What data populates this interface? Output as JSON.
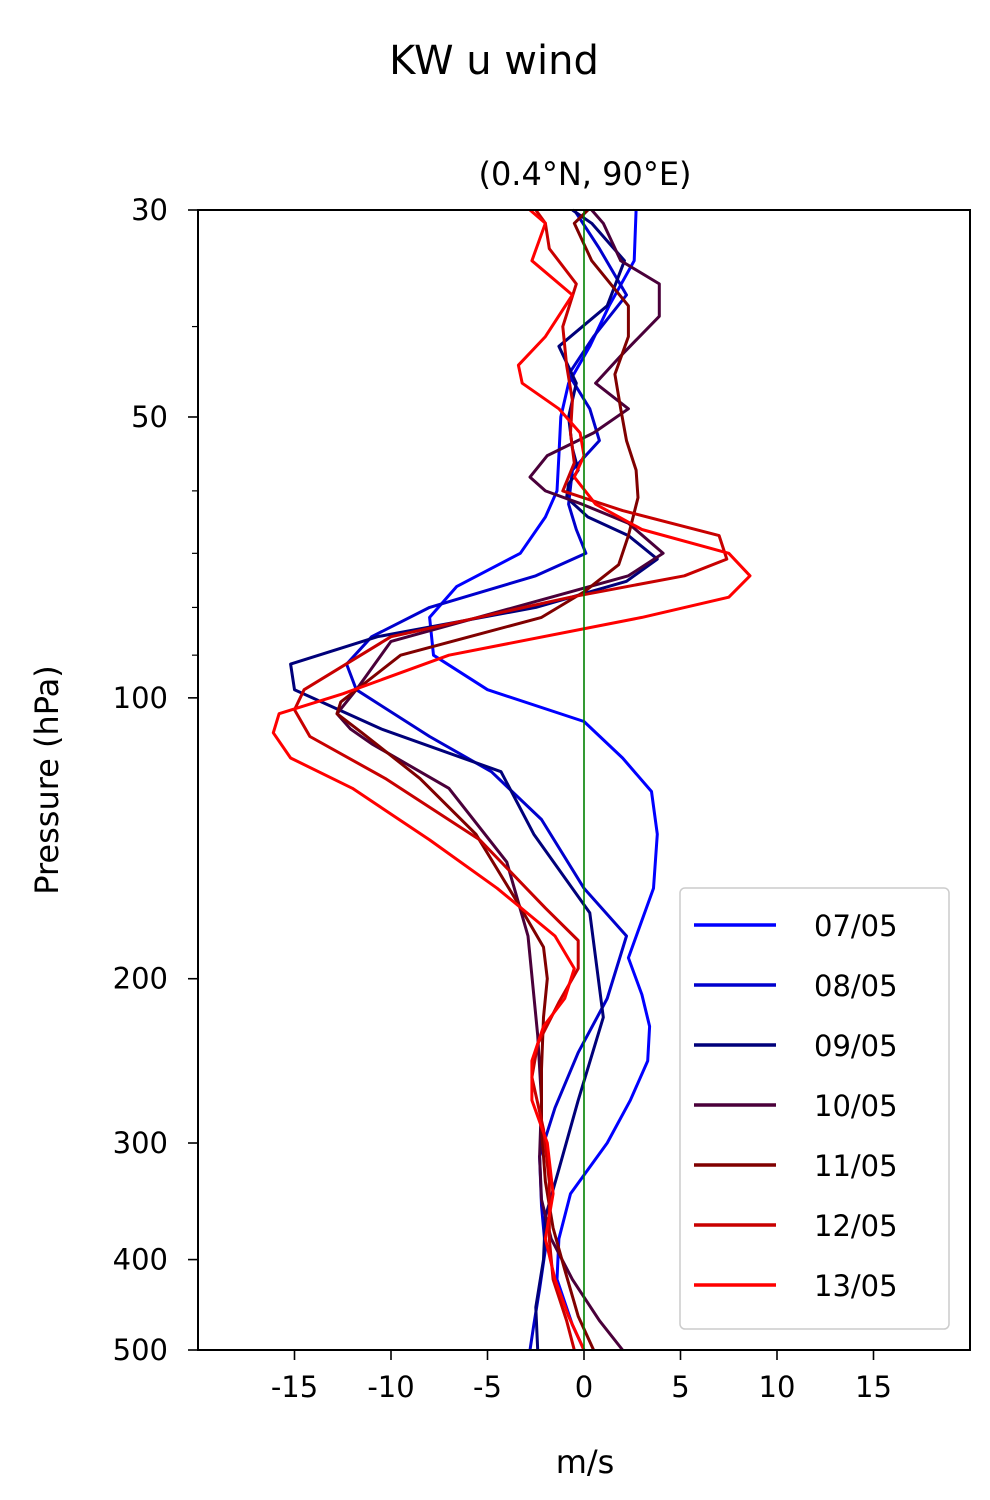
{
  "chart_data": {
    "type": "line",
    "title": "KW u wind",
    "subtitle": "(0.4°N, 90°E)",
    "xlabel": "m/s",
    "ylabel": "Pressure (hPa)",
    "xlim": [
      -20,
      20
    ],
    "ylim": [
      500,
      30
    ],
    "y_scale": "log",
    "x_ticks": [
      -15,
      -10,
      -5,
      0,
      5,
      10,
      15
    ],
    "x_tick_labels": [
      "-15",
      "-10",
      "-5",
      "0",
      "5",
      "10",
      "15"
    ],
    "y_ticks": [
      30,
      50,
      100,
      200,
      300,
      400,
      500
    ],
    "y_tick_labels": [
      "30",
      "50",
      "100",
      "200",
      "300",
      "400",
      "500"
    ],
    "y_minor_ticks": [
      40,
      60,
      70,
      80,
      90
    ],
    "zero_line_color": "#008000",
    "grid": false,
    "legend_position": "lower-right",
    "series": [
      {
        "name": "07/05",
        "color": "#0000ff",
        "x": [
          2.7,
          2.6,
          1.3,
          0.3,
          -0.8,
          -1.2,
          -1.3,
          -1.4,
          -2.0,
          -3.3,
          -6.6,
          -8.0,
          -7.8,
          -5.0,
          0.0,
          2.0,
          3.5,
          3.8,
          3.6,
          2.3,
          3.0,
          3.4,
          3.3,
          2.4,
          1.2,
          -0.7,
          -1.3,
          -1.4,
          -0.6,
          0.0
        ],
        "y": [
          30,
          34,
          38,
          42,
          46,
          50,
          55,
          60,
          64,
          70,
          76,
          82,
          90,
          98,
          106,
          116,
          126,
          140,
          160,
          190,
          208,
          225,
          245,
          270,
          300,
          340,
          380,
          420,
          470,
          500
        ]
      },
      {
        "name": "08/05",
        "color": "#0000cd",
        "x": [
          -0.5,
          0.8,
          2.2,
          0.5,
          -0.8,
          0.3,
          0.8,
          -0.6,
          -0.8,
          -0.4,
          0.1,
          -2.5,
          -8.0,
          -11.0,
          -12.3,
          -11.8,
          -8.0,
          -4.8,
          -2.2,
          0.0,
          2.2,
          1.2,
          -0.3,
          -1.5,
          -2.3,
          -2.2,
          -2.0,
          -2.3,
          -2.6,
          -2.8
        ],
        "y": [
          30,
          33,
          37,
          41,
          45,
          49,
          53,
          57,
          62,
          66,
          70,
          74,
          80,
          86,
          92,
          98,
          110,
          120,
          135,
          160,
          180,
          210,
          240,
          275,
          310,
          350,
          390,
          430,
          470,
          500
        ]
      },
      {
        "name": "09/05",
        "color": "#00007a",
        "x": [
          -0.6,
          0.4,
          2.1,
          1.2,
          -1.3,
          -0.4,
          -0.8,
          -0.6,
          -0.3,
          -0.8,
          -0.9,
          0.2,
          2.3,
          3.8,
          2.2,
          -2.5,
          -10.7,
          -15.2,
          -15.0,
          -10.5,
          -4.3,
          -2.6,
          0.3,
          1.0,
          -0.3,
          -1.3,
          -2.0,
          -2.1,
          -2.5,
          -2.4
        ],
        "y": [
          30,
          31,
          34,
          38,
          42,
          46,
          50,
          54,
          57,
          59,
          61,
          64,
          67,
          71,
          75,
          80,
          86,
          92,
          98,
          108,
          120,
          140,
          170,
          220,
          270,
          320,
          360,
          400,
          450,
          500
        ]
      },
      {
        "name": "10/05",
        "color": "#4a003a",
        "x": [
          0.4,
          1.0,
          1.9,
          3.9,
          3.9,
          1.9,
          0.6,
          2.3,
          0.5,
          -1.9,
          -2.8,
          -2.0,
          -0.1,
          2.3,
          4.1,
          2.3,
          -1.7,
          -10.0,
          -11.8,
          -12.8,
          -12.1,
          -11.0,
          -7.0,
          -4.0,
          -2.9,
          -2.4,
          -2.2,
          -2.3,
          -2.2,
          -1.7,
          -0.6,
          0.8,
          2.0
        ],
        "y": [
          30,
          31,
          34,
          36,
          39,
          43,
          46,
          49,
          52,
          55,
          58,
          60,
          62,
          65,
          70,
          74,
          78,
          87,
          98,
          104,
          108,
          112,
          125,
          150,
          180,
          230,
          270,
          310,
          345,
          380,
          420,
          465,
          500
        ]
      },
      {
        "name": "11/05",
        "color": "#800000",
        "x": [
          0.2,
          -0.5,
          0.4,
          2.3,
          2.3,
          1.6,
          1.9,
          2.2,
          2.7,
          2.8,
          2.3,
          1.8,
          0.0,
          -2.2,
          -9.5,
          -12.6,
          -12.8,
          -11.5,
          -8.5,
          -5.6,
          -3.5,
          -2.1,
          -1.9,
          -2.1,
          -2.2,
          -2.2,
          -2.0,
          -1.6,
          -1.0,
          -0.3,
          0.5
        ],
        "y": [
          30,
          31,
          34,
          38,
          41,
          45,
          49,
          53,
          57,
          61,
          67,
          72,
          77,
          82,
          90,
          101,
          104,
          109,
          122,
          140,
          165,
          185,
          200,
          220,
          250,
          290,
          330,
          370,
          410,
          460,
          500
        ]
      },
      {
        "name": "12/05",
        "color": "#c80000",
        "x": [
          -2.5,
          -2.0,
          -1.8,
          -0.4,
          -1.1,
          -0.9,
          -0.6,
          -0.7,
          -0.5,
          -1.1,
          2.0,
          7.0,
          7.4,
          5.2,
          -0.7,
          -10.0,
          -14.5,
          -15.0,
          -14.2,
          -10.3,
          -5.4,
          -2.0,
          -0.3,
          -0.3,
          -1.3,
          -2.4,
          -2.7,
          -2.1,
          -1.8,
          -1.8,
          -1.6,
          -0.9,
          -0.5
        ],
        "y": [
          30,
          31,
          33,
          36,
          40,
          44,
          48,
          52,
          56,
          60,
          63,
          67,
          71,
          74,
          78,
          86,
          98,
          103,
          110,
          122,
          142,
          168,
          182,
          195,
          212,
          235,
          255,
          290,
          330,
          380,
          420,
          465,
          500
        ]
      },
      {
        "name": "13/05",
        "color": "#ff0000",
        "x": [
          -2.8,
          -2.0,
          -2.7,
          -0.6,
          -2.0,
          -3.4,
          -3.2,
          -1.3,
          -0.2,
          0.0,
          -0.5,
          0.6,
          3.0,
          7.5,
          8.6,
          7.5,
          3.0,
          -7.0,
          -12.5,
          -15.8,
          -16.1,
          -15.2,
          -12.0,
          -8.0,
          -4.5,
          -1.5,
          -0.5,
          -1.0,
          -2.1,
          -2.7,
          -2.7,
          -1.9,
          -1.6,
          -2.0,
          -1.5,
          -0.8,
          0.0
        ],
        "y": [
          30,
          31,
          34,
          37,
          41,
          44,
          46,
          49,
          52,
          55,
          58,
          62,
          66,
          70,
          74,
          78,
          82,
          90,
          99,
          104,
          109,
          116,
          125,
          142,
          160,
          180,
          195,
          210,
          225,
          245,
          270,
          300,
          340,
          380,
          420,
          460,
          500
        ]
      }
    ]
  }
}
